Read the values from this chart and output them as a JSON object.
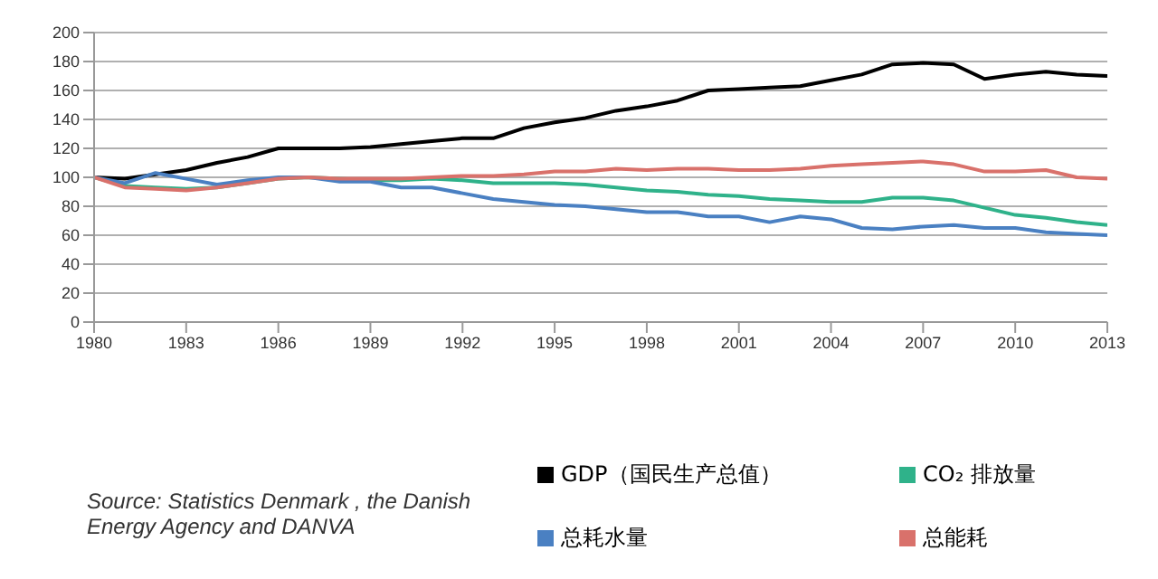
{
  "chart_data": {
    "type": "line",
    "x": [
      1980,
      1981,
      1982,
      1983,
      1984,
      1985,
      1986,
      1987,
      1988,
      1989,
      1990,
      1991,
      1992,
      1993,
      1994,
      1995,
      1996,
      1997,
      1998,
      1999,
      2000,
      2001,
      2002,
      2003,
      2004,
      2005,
      2006,
      2007,
      2008,
      2009,
      2010,
      2011,
      2012,
      2013
    ],
    "series": [
      {
        "name": "GDP（国民生产总值）",
        "color": "#000000",
        "values": [
          100,
          99,
          102,
          105,
          110,
          114,
          120,
          120,
          120,
          121,
          123,
          125,
          127,
          127,
          134,
          138,
          141,
          146,
          149,
          153,
          160,
          161,
          162,
          163,
          167,
          171,
          178,
          179,
          178,
          168,
          171,
          173,
          171,
          170
        ]
      },
      {
        "name": "CO₂ 排放量",
        "color": "#2fb28a",
        "values": [
          100,
          94,
          93,
          92,
          93,
          96,
          99,
          100,
          99,
          98,
          98,
          99,
          98,
          96,
          96,
          96,
          95,
          93,
          91,
          90,
          88,
          87,
          85,
          84,
          83,
          83,
          86,
          86,
          84,
          79,
          74,
          72,
          69,
          67
        ]
      },
      {
        "name": "总耗水量",
        "color": "#4a80c2",
        "values": [
          100,
          96,
          103,
          99,
          95,
          98,
          100,
          100,
          97,
          97,
          93,
          93,
          89,
          85,
          83,
          81,
          80,
          78,
          76,
          76,
          73,
          73,
          69,
          73,
          71,
          65,
          64,
          66,
          67,
          65,
          65,
          62,
          61,
          60
        ]
      },
      {
        "name": "总能耗",
        "color": "#d9716b",
        "values": [
          100,
          93,
          92,
          91,
          93,
          96,
          99,
          100,
          99,
          99,
          99,
          100,
          101,
          101,
          102,
          104,
          104,
          106,
          105,
          106,
          106,
          105,
          105,
          106,
          108,
          109,
          110,
          111,
          109,
          104,
          104,
          105,
          100,
          99
        ]
      }
    ],
    "xlim": [
      1980,
      2013
    ],
    "xticks": [
      1980,
      1983,
      1986,
      1989,
      1992,
      1995,
      1998,
      2001,
      2004,
      2007,
      2010,
      2013
    ],
    "ylim": [
      0,
      200
    ],
    "yticks": [
      0,
      20,
      40,
      60,
      80,
      100,
      120,
      140,
      160,
      180,
      200
    ],
    "grid": "y",
    "legend": "bottom right",
    "marker": "none",
    "line_style": "solid",
    "annotations": [
      "Source:  Statistics Denmark , the Danish Energy Agency and DANVA"
    ]
  }
}
